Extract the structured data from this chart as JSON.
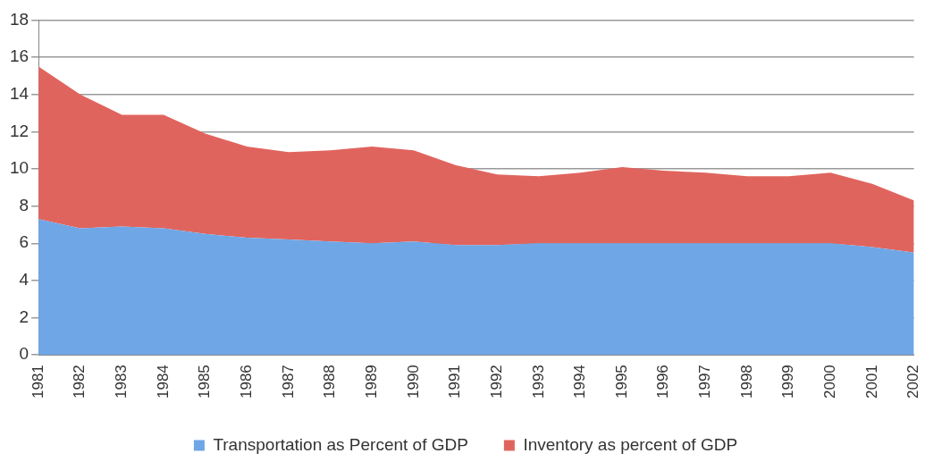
{
  "chart_data": {
    "type": "area",
    "stacked": true,
    "categories": [
      "1981",
      "1982",
      "1983",
      "1984",
      "1985",
      "1986",
      "1987",
      "1988",
      "1989",
      "1990",
      "1991",
      "1992",
      "1993",
      "1994",
      "1995",
      "1996",
      "1997",
      "1998",
      "1999",
      "2000",
      "2001",
      "2002"
    ],
    "series": [
      {
        "name": "Transportation as Percent of GDP",
        "color": "#6fa6e6",
        "values": [
          7.3,
          6.8,
          6.9,
          6.8,
          6.5,
          6.3,
          6.2,
          6.1,
          6.0,
          6.1,
          5.9,
          5.9,
          6.0,
          6.0,
          6.0,
          6.0,
          6.0,
          6.0,
          6.0,
          6.0,
          5.8,
          5.5
        ]
      },
      {
        "name": "Inventory as percent of GDP",
        "color": "#e0645e",
        "values": [
          8.2,
          7.2,
          6.0,
          6.1,
          5.4,
          4.9,
          4.7,
          4.9,
          5.2,
          4.9,
          4.3,
          3.8,
          3.6,
          3.8,
          4.1,
          3.9,
          3.8,
          3.6,
          3.6,
          3.8,
          3.4,
          2.8
        ]
      }
    ],
    "ylim": [
      0,
      18
    ],
    "yticks": [
      0,
      2,
      4,
      6,
      8,
      10,
      12,
      14,
      16,
      18
    ],
    "grid": "y",
    "legend": "bottom"
  }
}
